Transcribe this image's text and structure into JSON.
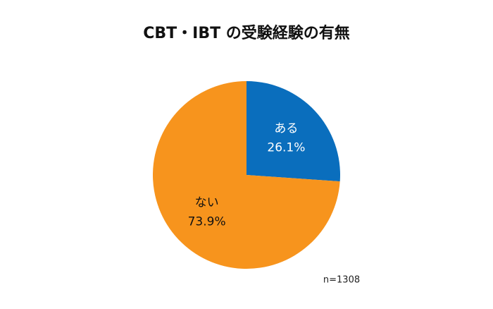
{
  "chart_data": {
    "type": "pie",
    "title": "CBT・IBT の受験経験の有無",
    "categories": [
      "ある",
      "ない"
    ],
    "values": [
      26.1,
      73.9
    ],
    "value_labels": [
      "26.1%",
      "73.9%"
    ],
    "colors": [
      "#0a6ebd",
      "#f7941d"
    ],
    "label_colors": [
      "#ffffff",
      "#111111"
    ],
    "note": "n=1308"
  }
}
